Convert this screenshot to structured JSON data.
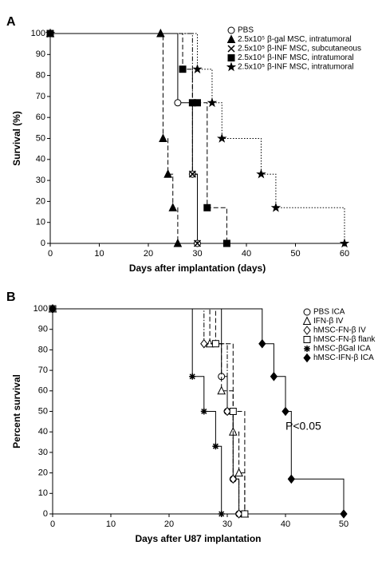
{
  "chart_data": [
    {
      "type": "step",
      "panel": "A",
      "xlabel": "Days after implantation (days)",
      "ylabel": "Survival (%)",
      "xlim": [
        0,
        60
      ],
      "xticks": [
        0,
        10,
        20,
        30,
        40,
        50,
        60
      ],
      "ylim": [
        0,
        100
      ],
      "yticks": [
        0,
        10,
        20,
        30,
        40,
        50,
        60,
        70,
        80,
        90,
        100
      ],
      "series": [
        {
          "name": "PBS",
          "marker": "circle",
          "filled": false,
          "dash": "solid",
          "x": [
            0,
            26,
            29,
            30
          ],
          "values": [
            100,
            67,
            33,
            0
          ]
        },
        {
          "name": "2.5x10⁵ β-gal MSC, intratumoral",
          "marker": "triangle",
          "filled": true,
          "dash": "dashed",
          "x": [
            0,
            22.5,
            23,
            24,
            25,
            26
          ],
          "values": [
            100,
            100,
            50,
            33,
            17,
            0
          ]
        },
        {
          "name": "2.5x10⁵ β-INF MSC, subcutaneous",
          "marker": "x",
          "filled": true,
          "dash": "dashdot",
          "x": [
            0,
            29,
            30
          ],
          "values": [
            100,
            33,
            0
          ]
        },
        {
          "name": "2.5x10⁴ β-INF MSC, intratumoral",
          "marker": "square",
          "filled": true,
          "dash": "dashed",
          "x": [
            0,
            27,
            29,
            30,
            32,
            36
          ],
          "values": [
            100,
            83,
            67,
            67,
            17,
            0
          ]
        },
        {
          "name": "2.5x10⁵ β-INF MSC, intratumoral",
          "marker": "star",
          "filled": true,
          "dash": "dotted",
          "x": [
            0,
            30,
            33,
            35,
            43,
            46,
            60
          ],
          "values": [
            100,
            83,
            67,
            50,
            33,
            17,
            0
          ]
        }
      ]
    },
    {
      "type": "step",
      "panel": "B",
      "xlabel": "Days after U87 implantation",
      "ylabel": "Percent survival",
      "annotation": "P<0.05",
      "xlim": [
        0,
        50
      ],
      "xticks": [
        0,
        10,
        20,
        30,
        40,
        50
      ],
      "ylim": [
        0,
        100
      ],
      "yticks": [
        0,
        10,
        20,
        30,
        40,
        50,
        60,
        70,
        80,
        90,
        100
      ],
      "series": [
        {
          "name": "PBS ICA",
          "marker": "circle",
          "filled": false,
          "dash": "solid",
          "x": [
            0,
            29,
            30,
            31,
            32
          ],
          "values": [
            100,
            67,
            50,
            17,
            0
          ]
        },
        {
          "name": "IFN-β IV",
          "marker": "triangle",
          "filled": false,
          "dash": "dashed",
          "x": [
            0,
            27,
            29,
            31,
            32,
            33
          ],
          "values": [
            100,
            83,
            60,
            40,
            20,
            0
          ]
        },
        {
          "name": "hMSC-FN-β IV",
          "marker": "diamond",
          "filled": false,
          "dash": "dashdot",
          "x": [
            0,
            26,
            30,
            31,
            32
          ],
          "values": [
            100,
            83,
            50,
            17,
            0
          ]
        },
        {
          "name": "hMSC-FN-β flank",
          "marker": "square",
          "filled": false,
          "dash": "dashed",
          "x": [
            0,
            28,
            31,
            33
          ],
          "values": [
            100,
            83,
            50,
            0
          ]
        },
        {
          "name": "hMSC-βGal ICA",
          "marker": "asterisk",
          "filled": true,
          "dash": "solid",
          "x": [
            0,
            24,
            26,
            28,
            29
          ],
          "values": [
            100,
            67,
            50,
            33,
            0
          ]
        },
        {
          "name": "hMSC-IFN-β ICA",
          "marker": "diamond",
          "filled": true,
          "dash": "solid",
          "x": [
            0,
            36,
            38,
            40,
            41,
            50
          ],
          "values": [
            100,
            83,
            67,
            50,
            17,
            0
          ]
        }
      ]
    }
  ]
}
